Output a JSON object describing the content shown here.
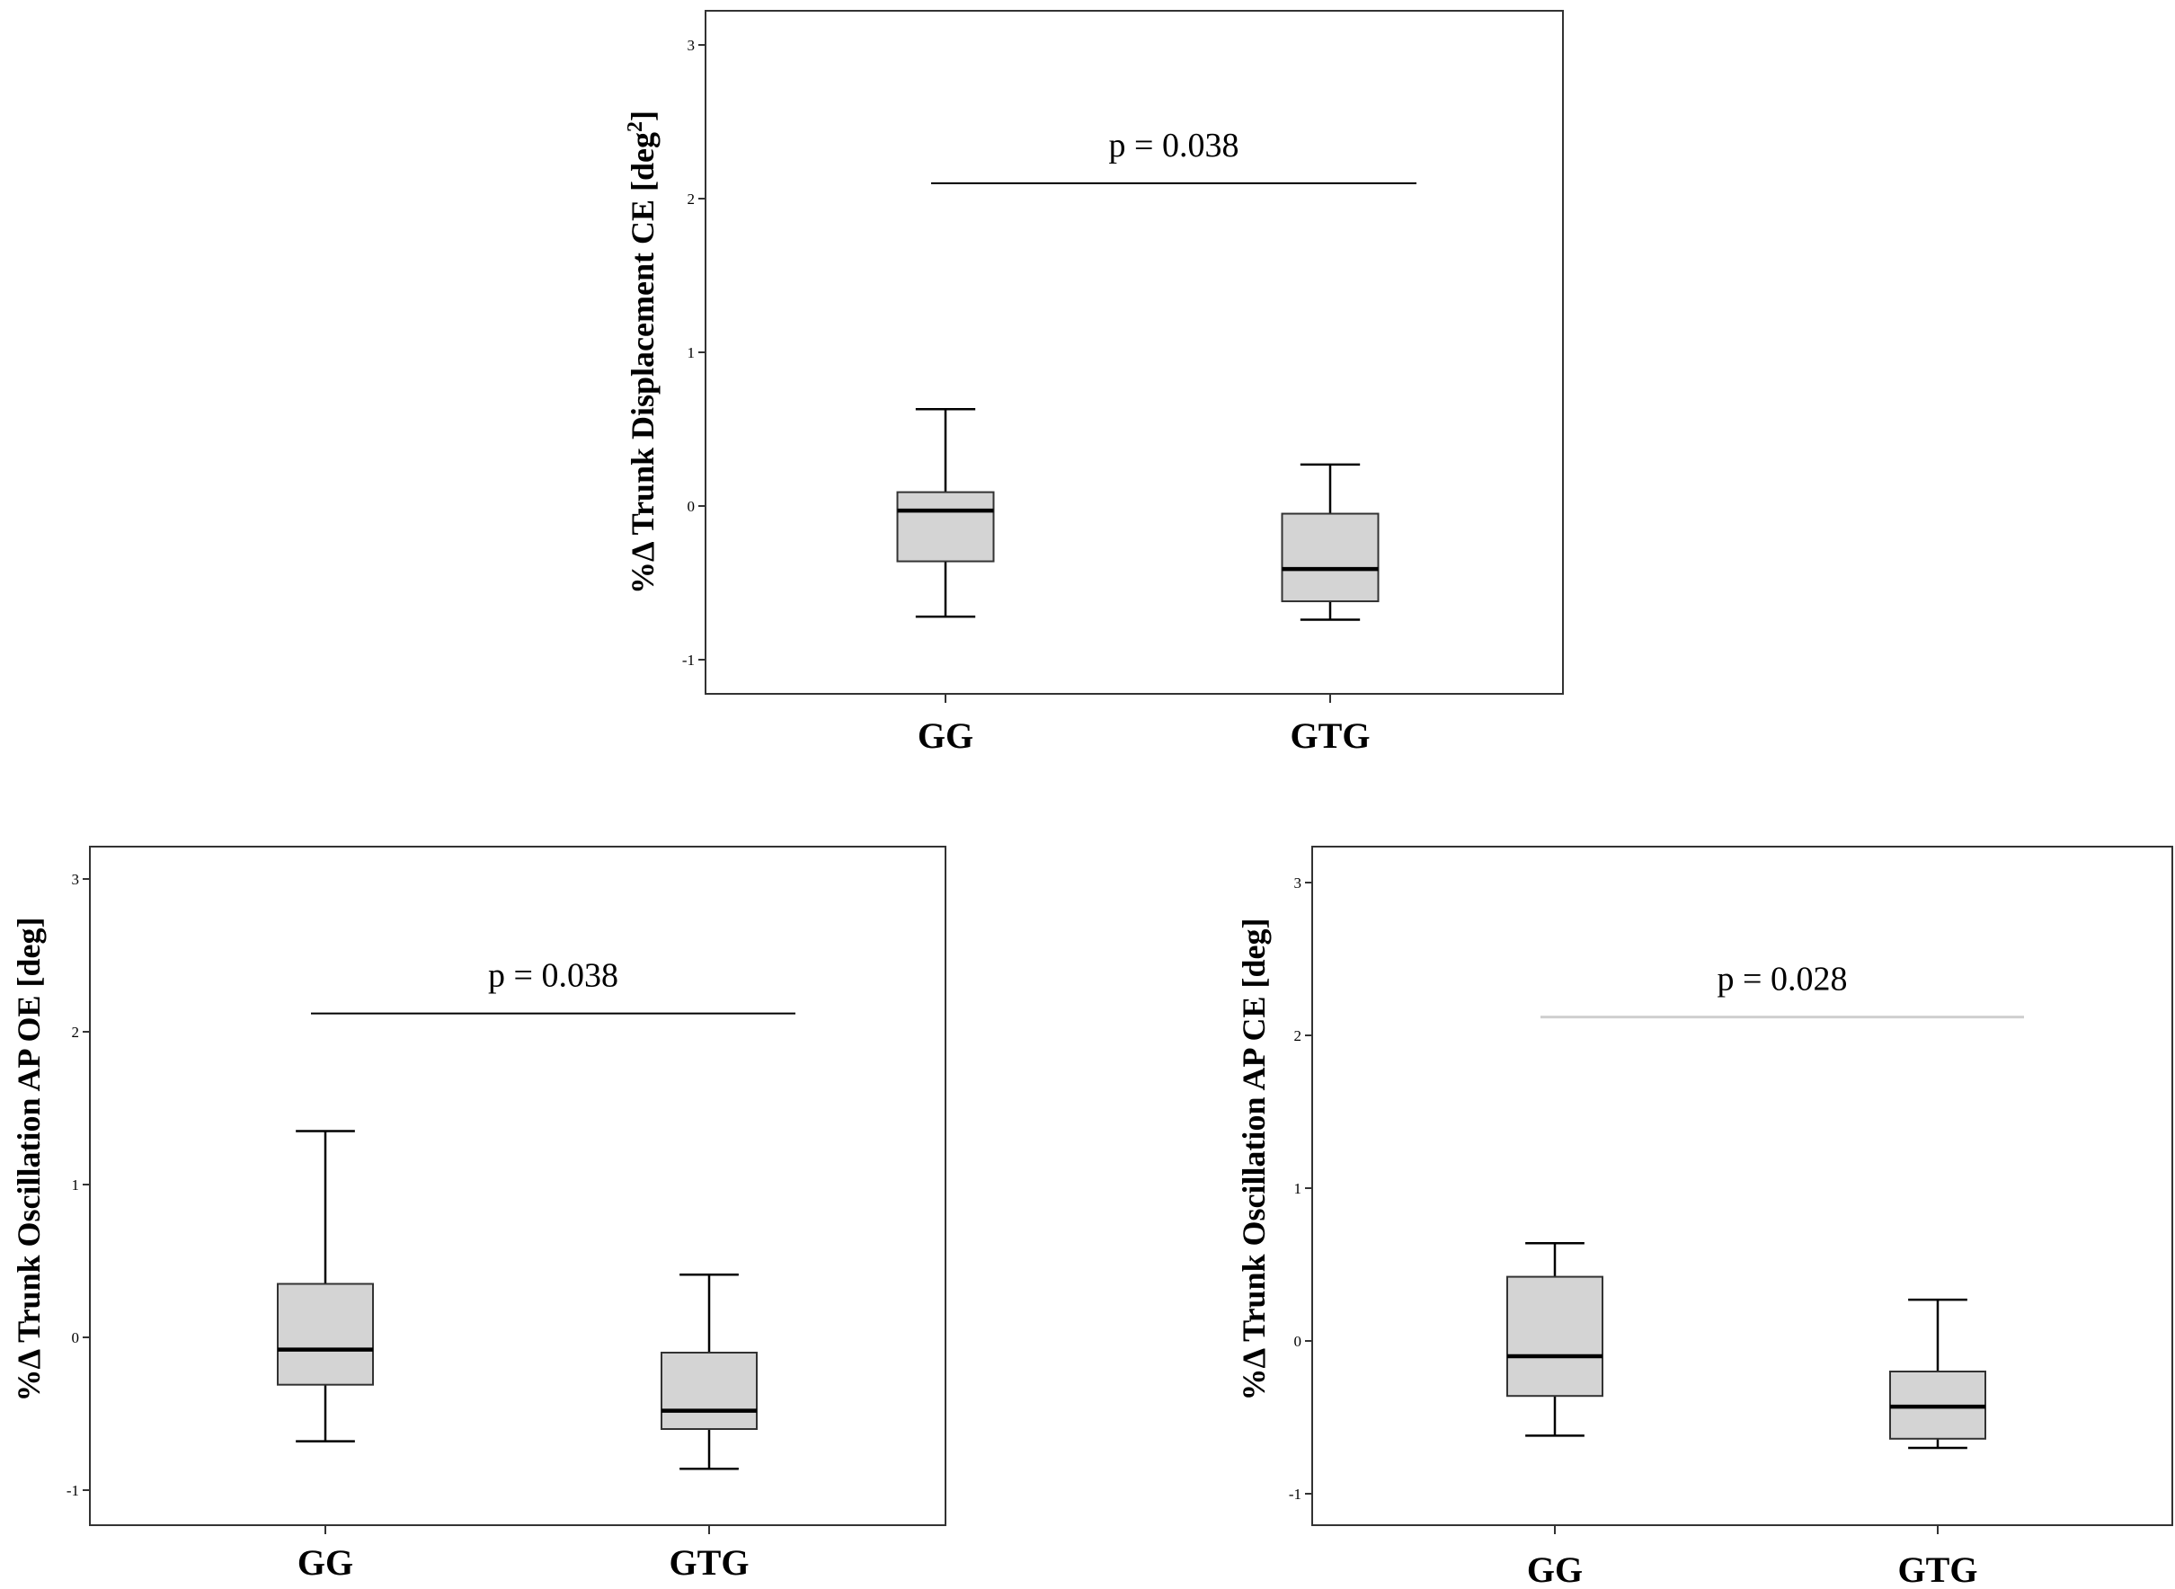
{
  "figure": {
    "colors": {
      "box_fill": "#d4d4d4",
      "stroke": "#000000",
      "frame": "#333333"
    }
  },
  "chart_data": [
    {
      "type": "box",
      "ylabel": "%Δ Trunk Displacement CE [deg²]",
      "ylabel_base": "%Δ Trunk Displacement CE [deg",
      "ylabel_sup": "2",
      "ylabel_end": "]",
      "ylim": [
        -1.2,
        3.2
      ],
      "yticks": [
        "-1",
        "0",
        "1",
        "2",
        "3"
      ],
      "categories": [
        "GG",
        "GTG"
      ],
      "boxes": [
        {
          "name": "GG",
          "whisker_low": -0.72,
          "q1": -0.36,
          "median": -0.03,
          "q3": 0.09,
          "whisker_high": 0.63
        },
        {
          "name": "GTG",
          "whisker_low": -0.74,
          "q1": -0.62,
          "median": -0.41,
          "q3": -0.05,
          "whisker_high": 0.27
        }
      ],
      "annotation": {
        "text": "p = 0.038",
        "y": 2.1
      }
    },
    {
      "type": "box",
      "ylabel": "%Δ Trunk Oscillation AP OE [deg]",
      "ylim": [
        -1.2,
        3.2
      ],
      "yticks": [
        "-1",
        "0",
        "1",
        "2",
        "3"
      ],
      "categories": [
        "GG",
        "GTG"
      ],
      "boxes": [
        {
          "name": "GG",
          "whisker_low": -0.68,
          "q1": -0.31,
          "median": -0.08,
          "q3": 0.35,
          "whisker_high": 1.35
        },
        {
          "name": "GTG",
          "whisker_low": -0.86,
          "q1": -0.6,
          "median": -0.48,
          "q3": -0.1,
          "whisker_high": 0.41
        }
      ],
      "annotation": {
        "text": "p = 0.038",
        "y": 2.12
      }
    },
    {
      "type": "box",
      "ylabel": "%Δ Trunk Oscillation AP CE [deg]",
      "ylim": [
        -1.2,
        3.2
      ],
      "yticks": [
        "-1",
        "0",
        "1",
        "2",
        "3"
      ],
      "categories": [
        "GG",
        "GTG"
      ],
      "boxes": [
        {
          "name": "GG",
          "whisker_low": -0.62,
          "q1": -0.36,
          "median": -0.1,
          "q3": 0.42,
          "whisker_high": 0.64
        },
        {
          "name": "GTG",
          "whisker_low": -0.7,
          "q1": -0.64,
          "median": -0.43,
          "q3": -0.2,
          "whisker_high": 0.27
        }
      ],
      "annotation": {
        "text": "p = 0.028",
        "y": 2.12
      }
    }
  ]
}
